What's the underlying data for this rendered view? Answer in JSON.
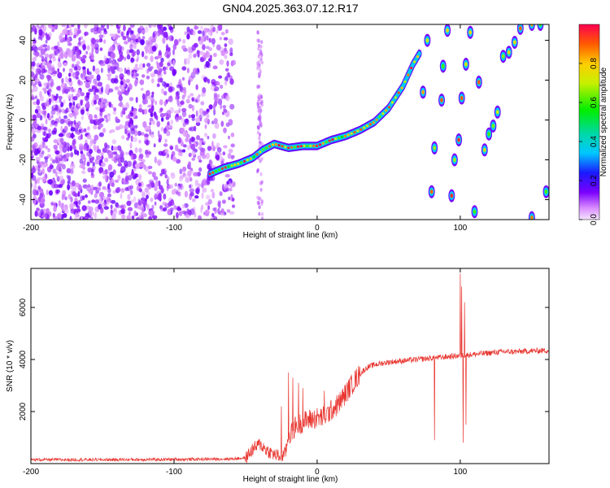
{
  "title": "GN04.2025.363.07.12.R17",
  "chart_data": [
    {
      "type": "heatmap",
      "title": "GN04.2025.363.07.12.R17",
      "xlabel": "Height of straight line (km)",
      "ylabel": "Frequency (Hz)",
      "xlim": [
        -200,
        162
      ],
      "ylim": [
        -50,
        48
      ],
      "xticks": [
        -200,
        -100,
        0,
        100
      ],
      "yticks": [
        -40,
        -20,
        0,
        20,
        40
      ],
      "colorbar": {
        "label": "Normalized spectral amplitude",
        "ticks": [
          0.0,
          0.2,
          0.4,
          0.6,
          0.8
        ],
        "range": [
          0,
          1
        ]
      },
      "noise_region": {
        "x_from": -200,
        "x_to": -58
      },
      "trace": [
        {
          "x": -75,
          "y": -27
        },
        {
          "x": -65,
          "y": -24
        },
        {
          "x": -55,
          "y": -22
        },
        {
          "x": -45,
          "y": -19
        },
        {
          "x": -38,
          "y": -15
        },
        {
          "x": -30,
          "y": -12
        },
        {
          "x": -20,
          "y": -14
        },
        {
          "x": -10,
          "y": -13
        },
        {
          "x": 0,
          "y": -13
        },
        {
          "x": 10,
          "y": -10
        },
        {
          "x": 20,
          "y": -8
        },
        {
          "x": 30,
          "y": -5
        },
        {
          "x": 40,
          "y": -1
        },
        {
          "x": 50,
          "y": 6
        },
        {
          "x": 60,
          "y": 17
        },
        {
          "x": 67,
          "y": 28
        },
        {
          "x": 72,
          "y": 34
        }
      ],
      "blobs": [
        {
          "x": 77,
          "y": 40
        },
        {
          "x": 74,
          "y": 14
        },
        {
          "x": 80,
          "y": -36
        },
        {
          "x": 82,
          "y": -14
        },
        {
          "x": 87,
          "y": 10
        },
        {
          "x": 88,
          "y": 27
        },
        {
          "x": 91,
          "y": 45
        },
        {
          "x": 94,
          "y": -38
        },
        {
          "x": 96,
          "y": -20
        },
        {
          "x": 99,
          "y": -10
        },
        {
          "x": 101,
          "y": 11
        },
        {
          "x": 104,
          "y": 28
        },
        {
          "x": 107,
          "y": 44
        },
        {
          "x": 110,
          "y": -46
        },
        {
          "x": 113,
          "y": 19
        },
        {
          "x": 117,
          "y": -15
        },
        {
          "x": 120,
          "y": -7
        },
        {
          "x": 123,
          "y": -3
        },
        {
          "x": 126,
          "y": 4
        },
        {
          "x": 130,
          "y": 32
        },
        {
          "x": 134,
          "y": 34
        },
        {
          "x": 138,
          "y": 39
        },
        {
          "x": 142,
          "y": 46
        },
        {
          "x": 150,
          "y": 48
        },
        {
          "x": 156,
          "y": 48
        },
        {
          "x": 160,
          "y": -36
        },
        {
          "x": 150,
          "y": -49
        }
      ]
    },
    {
      "type": "line",
      "xlabel": "Height of straight line (km)",
      "ylabel": "SNR (10 * v/v)",
      "xlim": [
        -200,
        162
      ],
      "ylim": [
        0,
        7500
      ],
      "xticks": [
        -200,
        -100,
        0,
        100
      ],
      "yticks": [
        2000,
        4000,
        6000
      ],
      "series": [
        {
          "name": "SNR",
          "color": "#e8342e",
          "baseline": [
            [
              -200,
              150
            ],
            [
              -150,
              150
            ],
            [
              -100,
              160
            ],
            [
              -60,
              180
            ],
            [
              -50,
              220
            ],
            [
              -45,
              550
            ],
            [
              -40,
              750
            ],
            [
              -35,
              500
            ],
            [
              -30,
              350
            ],
            [
              -25,
              250
            ],
            [
              -22,
              450
            ],
            [
              -20,
              1050
            ],
            [
              -15,
              1450
            ],
            [
              -10,
              1600
            ],
            [
              -5,
              1700
            ],
            [
              0,
              1750
            ],
            [
              5,
              1800
            ],
            [
              10,
              2050
            ],
            [
              15,
              2300
            ],
            [
              20,
              2700
            ],
            [
              25,
              3100
            ],
            [
              30,
              3450
            ],
            [
              35,
              3700
            ],
            [
              40,
              3800
            ],
            [
              50,
              3900
            ],
            [
              60,
              3950
            ],
            [
              70,
              4000
            ],
            [
              80,
              4050
            ],
            [
              90,
              4100
            ],
            [
              100,
              4150
            ],
            [
              110,
              4200
            ],
            [
              120,
              4250
            ],
            [
              130,
              4300
            ],
            [
              140,
              4300
            ],
            [
              150,
              4330
            ],
            [
              162,
              4350
            ]
          ],
          "spikes": [
            {
              "x": 82,
              "y": 900
            },
            {
              "x": 100,
              "y": 7300
            },
            {
              "x": 101,
              "y": 6800
            },
            {
              "x": 102,
              "y": 800
            },
            {
              "x": 103,
              "y": 6200
            },
            {
              "x": 104,
              "y": 1500
            },
            {
              "x": -20,
              "y": 3500
            },
            {
              "x": -17,
              "y": 3300
            },
            {
              "x": -13,
              "y": 3100
            },
            {
              "x": -25,
              "y": 2200
            },
            {
              "x": -10,
              "y": 2900
            },
            {
              "x": 5,
              "y": 2800
            }
          ]
        }
      ]
    }
  ]
}
